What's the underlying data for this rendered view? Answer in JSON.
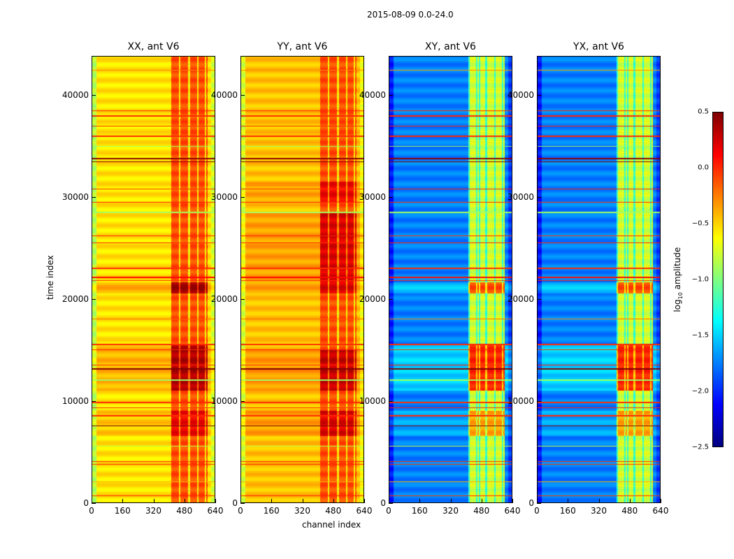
{
  "figure": {
    "title": "2015-08-09 0.0-24.0",
    "ylabel": "time index",
    "xlabel": "channel index"
  },
  "chart_data": {
    "type": "heatmap",
    "xlim": [
      0,
      640
    ],
    "ylim": [
      0,
      43800
    ],
    "xticks": [
      0,
      160,
      320,
      480,
      640
    ],
    "yticks": [
      0,
      10000,
      20000,
      30000,
      40000
    ],
    "colorbar": {
      "label": "log10 amplitude",
      "label_main": "log",
      "label_sub": "10",
      "label_rest": " amplitude",
      "range": [
        -2.5,
        0.5
      ],
      "ticks": [
        "0.5",
        "0.0",
        "−0.5",
        "−1.0",
        "−1.5",
        "−2.0",
        "−2.5"
      ],
      "tick_values": [
        0.5,
        0,
        -0.5,
        -1,
        -1.5,
        -2,
        -2.5
      ],
      "colormap": "jet"
    },
    "panels": [
      {
        "title": "XX, ant V6",
        "base": -0.55,
        "rfi_base": -0.1,
        "regions": [
          [
            6500,
            9000,
            0.2
          ],
          [
            11000,
            15500,
            0.35
          ],
          [
            20500,
            21600,
            0.4
          ]
        ],
        "rfi_columns": [
          455,
          505,
          550,
          590
        ]
      },
      {
        "title": "YY, ant V6",
        "base": -0.45,
        "rfi_base": -0.1,
        "regions": [
          [
            6500,
            9000,
            0.25
          ],
          [
            11000,
            15000,
            0.3
          ],
          [
            20500,
            28500,
            0.25
          ],
          [
            29500,
            31500,
            0.2
          ]
        ],
        "rfi_columns": [
          455,
          505,
          550,
          590
        ]
      },
      {
        "title": "XY, ant V6",
        "base": -1.75,
        "rfi_base": -0.75,
        "regions": [
          [
            6500,
            9000,
            0.3
          ],
          [
            11000,
            15500,
            0.6
          ],
          [
            20500,
            21600,
            0.5
          ]
        ],
        "rfi_columns": [
          415,
          455,
          470,
          505,
          550,
          590
        ]
      },
      {
        "title": "YX, ant V6",
        "base": -1.75,
        "rfi_base": -0.75,
        "regions": [
          [
            6500,
            9000,
            0.3
          ],
          [
            11000,
            15500,
            0.6
          ],
          [
            20500,
            21600,
            0.5
          ]
        ],
        "rfi_columns": [
          415,
          455,
          470,
          505,
          550,
          590
        ]
      }
    ],
    "stripes": [
      [
        600,
        0
      ],
      [
        2000,
        -0.4
      ],
      [
        3700,
        0
      ],
      [
        4000,
        0
      ],
      [
        5500,
        -0.8
      ],
      [
        7500,
        0.8
      ],
      [
        8500,
        0
      ],
      [
        9300,
        0
      ],
      [
        9800,
        0
      ],
      [
        12000,
        -0.9
      ],
      [
        13100,
        0.6
      ],
      [
        13500,
        0
      ],
      [
        15000,
        0
      ],
      [
        15500,
        0
      ],
      [
        18000,
        -0.2
      ],
      [
        21800,
        0
      ],
      [
        22100,
        0.1
      ],
      [
        23000,
        0
      ],
      [
        25500,
        0
      ],
      [
        26200,
        0
      ],
      [
        28500,
        -0.9
      ],
      [
        29500,
        0
      ],
      [
        30800,
        0
      ],
      [
        33500,
        0.5
      ],
      [
        33800,
        0.45
      ],
      [
        35000,
        -0.9
      ],
      [
        36000,
        0
      ],
      [
        37000,
        0
      ],
      [
        38000,
        0
      ],
      [
        38500,
        0
      ],
      [
        42500,
        -0.3
      ]
    ]
  }
}
